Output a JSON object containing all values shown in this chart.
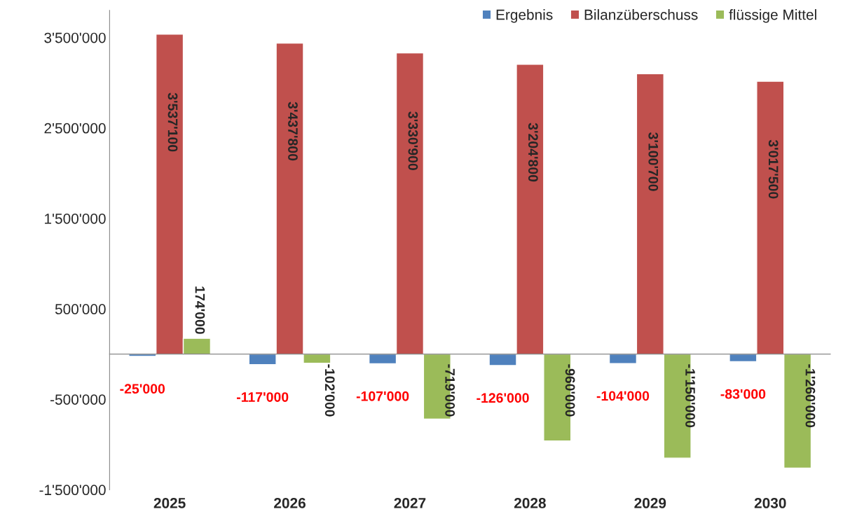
{
  "chart_data": {
    "type": "bar",
    "categories": [
      "2025",
      "2026",
      "2027",
      "2028",
      "2029",
      "2030"
    ],
    "series": [
      {
        "name": "Ergebnis",
        "color": "#4f81bd",
        "values": [
          -25000,
          -117000,
          -107000,
          -126000,
          -104000,
          -83000
        ],
        "value_labels": [
          "-25'000",
          "-117'000",
          "-107'000",
          "-126'000",
          "-104'000",
          "-83'000"
        ]
      },
      {
        "name": "Bilanzüberschuss",
        "color": "#c0504d",
        "values": [
          3537100,
          3437800,
          3330900,
          3204800,
          3100700,
          3017500
        ],
        "value_labels": [
          "3'537'100",
          "3'437'800",
          "3'330'900",
          "3'204'800",
          "3'100'700",
          "3'017'500"
        ]
      },
      {
        "name": "flüssige Mittel",
        "color": "#9bbb59",
        "values": [
          174000,
          -102000,
          -719000,
          -960000,
          -1150000,
          -1260000
        ],
        "value_labels": [
          "174'000",
          "-102'000",
          "-719'000",
          "-960'000",
          "-1'150'000",
          "-1'260'000"
        ]
      }
    ],
    "ylim": [
      -1500000,
      3800000
    ],
    "yticks": [
      {
        "value": -1500000,
        "label": "-1'500'000"
      },
      {
        "value": -500000,
        "label": "-500'000"
      },
      {
        "value": 500000,
        "label": "500'000"
      },
      {
        "value": 1500000,
        "label": "1'500'000"
      },
      {
        "value": 2500000,
        "label": "2'500'000"
      },
      {
        "value": 3500000,
        "label": "3'500'000"
      }
    ],
    "grid": false,
    "legend": "top right"
  }
}
